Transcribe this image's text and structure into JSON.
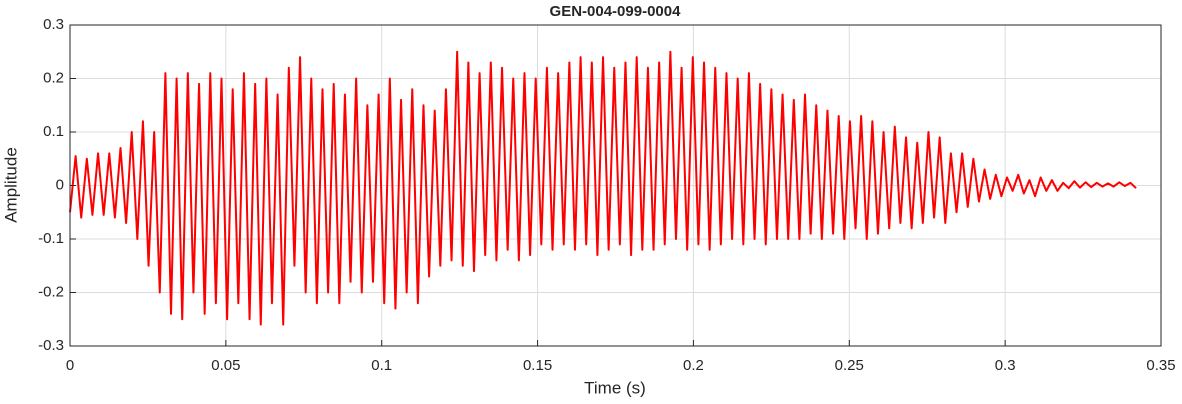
{
  "chart_data": {
    "type": "line",
    "title": "GEN-004-099-0004",
    "xlabel": "Time (s)",
    "ylabel": "Amplitude",
    "x": [
      0,
      0.0018,
      0.0036,
      0.0054,
      0.0072,
      0.009,
      0.0108,
      0.0126,
      0.0144,
      0.0162,
      0.018,
      0.0198,
      0.0216,
      0.0234,
      0.0252,
      0.027,
      0.0288,
      0.0306,
      0.0324,
      0.0342,
      0.036,
      0.0378,
      0.0396,
      0.0414,
      0.0432,
      0.045,
      0.0468,
      0.0486,
      0.0504,
      0.0522,
      0.054,
      0.0558,
      0.0576,
      0.0594,
      0.0612,
      0.063,
      0.0648,
      0.0666,
      0.0684,
      0.0702,
      0.072,
      0.0738,
      0.0756,
      0.0774,
      0.0792,
      0.081,
      0.0828,
      0.0846,
      0.0864,
      0.0882,
      0.09,
      0.0918,
      0.0936,
      0.0954,
      0.0972,
      0.099,
      0.1008,
      0.1026,
      0.1044,
      0.1062,
      0.108,
      0.1098,
      0.1116,
      0.1134,
      0.1152,
      0.117,
      0.1188,
      0.1206,
      0.1224,
      0.1242,
      0.126,
      0.1278,
      0.1296,
      0.1314,
      0.1332,
      0.135,
      0.1368,
      0.1386,
      0.1404,
      0.1422,
      0.144,
      0.1458,
      0.1476,
      0.1494,
      0.1512,
      0.153,
      0.1548,
      0.1566,
      0.1584,
      0.1602,
      0.162,
      0.1638,
      0.1656,
      0.1674,
      0.1692,
      0.171,
      0.1728,
      0.1746,
      0.1764,
      0.1782,
      0.18,
      0.1818,
      0.1836,
      0.1854,
      0.1872,
      0.189,
      0.1908,
      0.1926,
      0.1944,
      0.1962,
      0.198,
      0.1998,
      0.2016,
      0.2034,
      0.2052,
      0.207,
      0.2088,
      0.2106,
      0.2124,
      0.2142,
      0.216,
      0.2178,
      0.2196,
      0.2214,
      0.2232,
      0.225,
      0.2268,
      0.2286,
      0.2304,
      0.2322,
      0.234,
      0.2358,
      0.2376,
      0.2394,
      0.2412,
      0.243,
      0.2448,
      0.2466,
      0.2484,
      0.2502,
      0.252,
      0.2538,
      0.2556,
      0.2574,
      0.2592,
      0.261,
      0.2628,
      0.2646,
      0.2664,
      0.2682,
      0.27,
      0.2718,
      0.2736,
      0.2754,
      0.2772,
      0.279,
      0.2808,
      0.2826,
      0.2844,
      0.2862,
      0.288,
      0.2898,
      0.2916,
      0.2934,
      0.2952,
      0.297,
      0.2988,
      0.3006,
      0.3024,
      0.3042,
      0.306,
      0.3078,
      0.3096,
      0.3114,
      0.3132,
      0.315,
      0.3168,
      0.3186,
      0.3204,
      0.3222,
      0.324,
      0.3258,
      0.3276,
      0.3294,
      0.3312,
      0.333,
      0.3348,
      0.3366,
      0.3384,
      0.3402,
      0.342
    ],
    "series": [
      {
        "color": "#ff0000",
        "values": [
          -0.05,
          0.055,
          -0.06,
          0.05,
          -0.055,
          0.06,
          -0.055,
          0.06,
          -0.06,
          0.07,
          -0.07,
          0.1,
          -0.1,
          0.12,
          -0.15,
          0.1,
          -0.2,
          0.21,
          -0.24,
          0.2,
          -0.25,
          0.21,
          -0.2,
          0.19,
          -0.24,
          0.21,
          -0.22,
          0.2,
          -0.25,
          0.18,
          -0.22,
          0.21,
          -0.25,
          0.19,
          -0.26,
          0.2,
          -0.22,
          0.17,
          -0.26,
          0.22,
          -0.15,
          0.24,
          -0.2,
          0.2,
          -0.22,
          0.18,
          -0.2,
          0.19,
          -0.22,
          0.17,
          -0.18,
          0.2,
          -0.2,
          0.15,
          -0.18,
          0.17,
          -0.22,
          0.2,
          -0.23,
          0.16,
          -0.2,
          0.18,
          -0.22,
          0.15,
          -0.17,
          0.14,
          -0.15,
          0.18,
          -0.14,
          0.25,
          -0.15,
          0.23,
          -0.16,
          0.21,
          -0.13,
          0.23,
          -0.14,
          0.22,
          -0.12,
          0.2,
          -0.14,
          0.21,
          -0.13,
          0.2,
          -0.11,
          0.22,
          -0.12,
          0.21,
          -0.11,
          0.23,
          -0.12,
          0.24,
          -0.11,
          0.23,
          -0.13,
          0.24,
          -0.12,
          0.22,
          -0.11,
          0.23,
          -0.13,
          0.24,
          -0.12,
          0.22,
          -0.12,
          0.23,
          -0.11,
          0.25,
          -0.1,
          0.22,
          -0.12,
          0.24,
          -0.11,
          0.23,
          -0.12,
          0.22,
          -0.11,
          0.21,
          -0.1,
          0.2,
          -0.11,
          0.21,
          -0.1,
          0.19,
          -0.11,
          0.18,
          -0.1,
          0.17,
          -0.1,
          0.16,
          -0.1,
          0.17,
          -0.09,
          0.15,
          -0.1,
          0.14,
          -0.09,
          0.13,
          -0.1,
          0.12,
          -0.08,
          0.13,
          -0.1,
          0.12,
          -0.09,
          0.1,
          -0.08,
          0.11,
          -0.07,
          0.09,
          -0.08,
          0.08,
          -0.07,
          0.1,
          -0.06,
          0.09,
          -0.07,
          0.06,
          -0.05,
          0.06,
          -0.04,
          0.05,
          -0.03,
          0.03,
          -0.025,
          0.02,
          -0.02,
          0.015,
          -0.01,
          0.02,
          -0.015,
          0.01,
          -0.02,
          0.015,
          -0.01,
          0.01,
          -0.01,
          0.005,
          -0.005,
          0.008,
          -0.004,
          0.006,
          -0.003,
          0.005,
          -0.002,
          0.004,
          -0.002,
          0.006,
          -0.001,
          0.005,
          -0.005
        ]
      }
    ],
    "xlim": [
      0,
      0.35
    ],
    "xticks": [
      0,
      0.05,
      0.1,
      0.15,
      0.2,
      0.25,
      0.3,
      0.35
    ],
    "ylim": [
      -0.3,
      0.3
    ],
    "yticks": [
      -0.3,
      -0.2,
      -0.1,
      0,
      0.1,
      0.2,
      0.3
    ],
    "grid": true
  }
}
